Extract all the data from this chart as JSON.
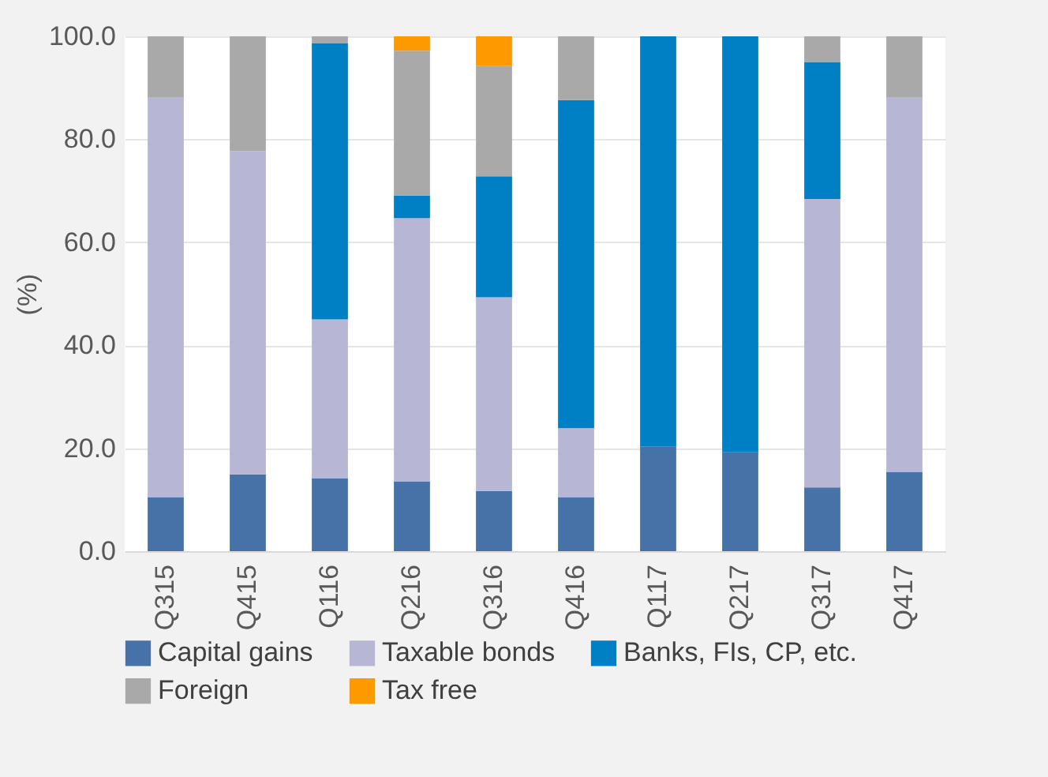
{
  "chart_data": {
    "type": "bar",
    "stacked": true,
    "ylabel": "(%)",
    "categories": [
      "Q315",
      "Q415",
      "Q116",
      "Q216",
      "Q316",
      "Q416",
      "Q117",
      "Q217",
      "Q317",
      "Q417"
    ],
    "series": [
      {
        "name": "Capital gains",
        "color": "#4672a8",
        "values": [
          10.5,
          14.9,
          14.1,
          13.5,
          11.7,
          10.5,
          20.3,
          19.2,
          12.4,
          15.4
        ]
      },
      {
        "name": "Taxable bonds",
        "color": "#b7b7d5",
        "values": [
          77.7,
          62.8,
          30.9,
          51.2,
          37.6,
          13.4,
          0,
          0,
          56.0,
          72.8
        ]
      },
      {
        "name": "Banks, FIs, CP, etc.",
        "color": "#0080c4",
        "values": [
          0,
          0,
          53.7,
          4.4,
          23.5,
          63.7,
          79.7,
          80.8,
          26.6,
          0
        ]
      },
      {
        "name": "Foreign",
        "color": "#a9a9a9",
        "values": [
          11.8,
          22.3,
          1.3,
          28.1,
          21.5,
          12.4,
          0,
          0,
          5.0,
          11.8
        ]
      },
      {
        "name": "Tax free",
        "color": "#ff9900",
        "values": [
          0,
          0,
          0,
          2.8,
          5.7,
          0,
          0,
          0,
          0,
          0
        ]
      }
    ],
    "ylim": [
      0,
      100
    ],
    "yticks": [
      {
        "value": 0,
        "label": "0.0"
      },
      {
        "value": 20,
        "label": "20.0"
      },
      {
        "value": 40,
        "label": "40.0"
      },
      {
        "value": 60,
        "label": "60.0"
      },
      {
        "value": 80,
        "label": "80.0"
      },
      {
        "value": 100,
        "label": "100.0"
      }
    ],
    "grid": "y",
    "legend": "bottom"
  }
}
